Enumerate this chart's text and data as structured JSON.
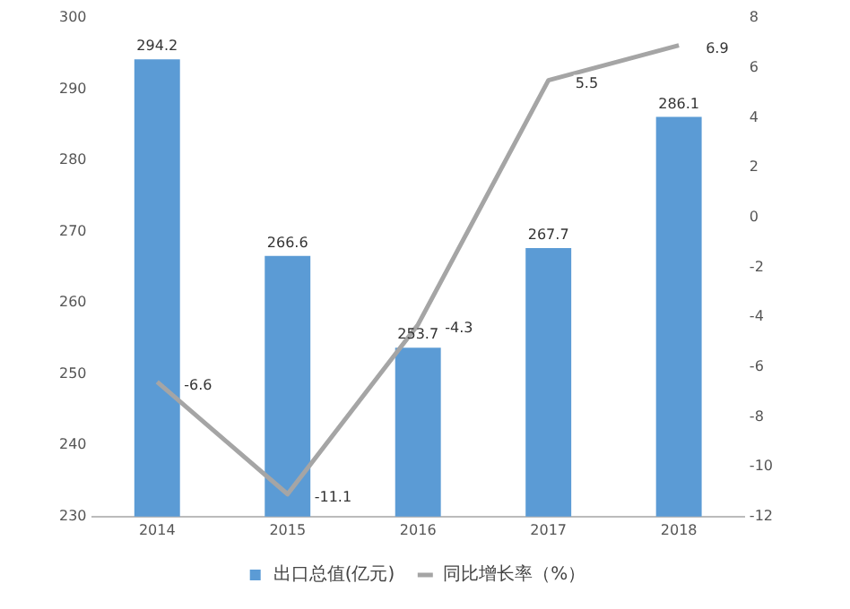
{
  "chart_data": {
    "type": "bar",
    "categories": [
      "2014",
      "2015",
      "2016",
      "2017",
      "2018"
    ],
    "series": [
      {
        "name": "出口总值(亿元)",
        "color": "#5b9bd5",
        "values": [
          294.2,
          266.6,
          253.7,
          267.7,
          286.1
        ]
      },
      {
        "name": "同比增长率（%）",
        "type": "line",
        "axis": "y2",
        "color": "#a5a5a5",
        "values": [
          -6.6,
          -11.1,
          -4.3,
          5.5,
          6.9
        ]
      }
    ],
    "ylim": [
      230,
      300
    ],
    "yticks": [
      230,
      240,
      250,
      260,
      270,
      280,
      290,
      300
    ],
    "y2lim": [
      -12,
      8
    ],
    "y2ticks": [
      -12,
      -10,
      -8,
      -6,
      -4,
      -2,
      0,
      2,
      4,
      6,
      8
    ],
    "grid": false,
    "legend": "bottom",
    "data_labels": true,
    "marker": "none",
    "line_style": "solid"
  }
}
